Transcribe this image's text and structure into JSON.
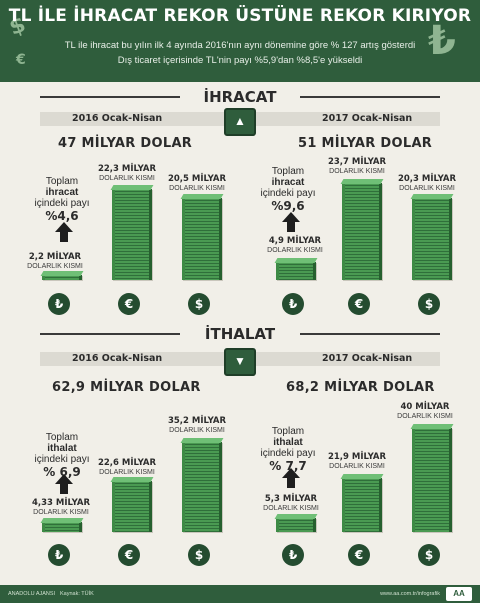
{
  "header": {
    "title": "TL İLE İHRACAT REKOR ÜSTÜNE REKOR KIRIYOR",
    "line1": "TL ile ihracat bu yılın ilk 4 ayında 2016'nın aynı dönemine göre % 127 artış gösterdi",
    "line2": "Dış ticaret içerisinde TL'nin payı %5,9'dan %8,5'e yükseldi",
    "icons": [
      "dollar-icon",
      "euro-icon",
      "lira-icon"
    ]
  },
  "export": {
    "title": "İHRACAT",
    "left": {
      "period": "2016 Ocak-Nisan",
      "total": "47 MİLYAR DOLAR",
      "share": {
        "t1a": "Toplam ",
        "t1b": "ihracat",
        "t2": "içindeki payı",
        "pct": "%4,6"
      },
      "tl": {
        "v": "2,2 MİLYAR",
        "d": "DOLARLIK KISMI"
      },
      "eur": {
        "v": "22,3 MİLYAR",
        "d": "DOLARLIK KISMI"
      },
      "usd": {
        "v": "20,5 MİLYAR",
        "d": "DOLARLIK KISMI"
      }
    },
    "right": {
      "period": "2017 Ocak-Nisan",
      "total": "51 MİLYAR DOLAR",
      "share": {
        "t1a": "Toplam ",
        "t1b": "ihracat",
        "t2": "içindeki payı",
        "pct": "%9,6"
      },
      "tl": {
        "v": "4,9 MİLYAR",
        "d": "DOLARLIK KISMI"
      },
      "eur": {
        "v": "23,7 MİLYAR",
        "d": "DOLARLIK KISMI"
      },
      "usd": {
        "v": "20,3 MİLYAR",
        "d": "DOLARLIK KISMI"
      }
    }
  },
  "import": {
    "title": "İTHALAT",
    "left": {
      "period": "2016 Ocak-Nisan",
      "total": "62,9 MİLYAR DOLAR",
      "share": {
        "t1a": "Toplam ",
        "t1b": "ithalat",
        "t2": "içindeki payı",
        "pct": "% 6,9"
      },
      "tl": {
        "v": "4,33 MİLYAR",
        "d": "DOLARLIK KISMI"
      },
      "eur": {
        "v": "22,6 MİLYAR",
        "d": "DOLARLIK KISMI"
      },
      "usd": {
        "v": "35,2 MİLYAR",
        "d": "DOLARLIK KISMI"
      }
    },
    "right": {
      "period": "2017 Ocak-Nisan",
      "total": "68,2 MİLYAR DOLAR",
      "share": {
        "t1a": "Toplam ",
        "t1b": "ithalat",
        "t2": "içindeki payı",
        "pct": "% 7,7"
      },
      "tl": {
        "v": "5,3 MİLYAR",
        "d": "DOLARLIK KISMI"
      },
      "eur": {
        "v": "21,9 MİLYAR",
        "d": "DOLARLIK KISMI"
      },
      "usd": {
        "v": "40 MİLYAR",
        "d": "DOLARLIK KISMI"
      }
    }
  },
  "currency_symbols": {
    "tl": "₺",
    "eur": "€",
    "usd": "$"
  },
  "footer": {
    "left": "ANADOLU AJANSI",
    "source": "Kaynak: TÜİK",
    "right": "www.aa.com.tr/infografik",
    "logo": "AA"
  },
  "colors": {
    "brand": "#2f5d3c",
    "money": "#4a9a52",
    "background": "#f1efe8"
  }
}
